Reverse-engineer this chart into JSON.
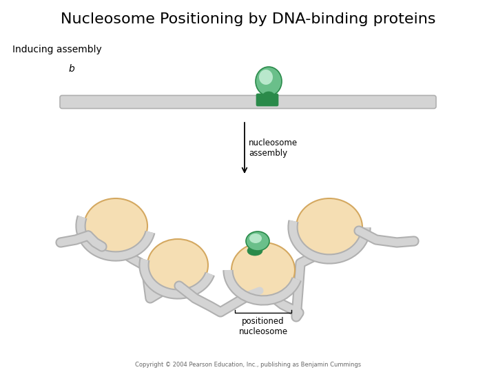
{
  "title": "Nucleosome Positioning by DNA-binding proteins",
  "subtitle": "Inducing assembly",
  "label_b": "b",
  "arrow_label": "nucleosome\nassembly",
  "positioned_label": "positioned\nnucleosome",
  "copyright": "Copyright © 2004 Pearson Education, Inc., publishing as Benjamin Cummings",
  "bg_color": "#ffffff",
  "dna_color": "#d4d4d4",
  "dna_edge_color": "#b0b0b0",
  "nucleosome_fill": "#f5deb3",
  "nucleosome_edge": "#d4a860",
  "protein_fill_outer": "#6abf8a",
  "protein_fill_inner": "#c8f0d8",
  "protein_dark": "#2a8a4a",
  "figsize": [
    7.2,
    5.4
  ],
  "dpi": 100
}
